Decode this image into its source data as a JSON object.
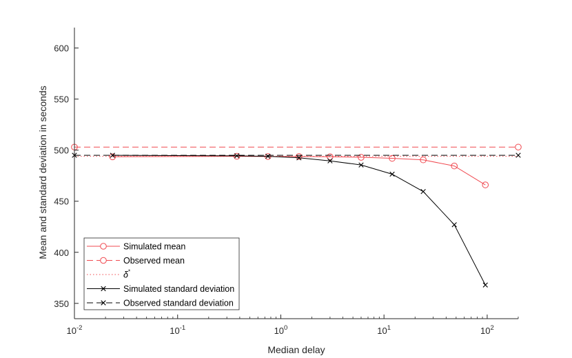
{
  "chart_data": {
    "type": "line",
    "title": "",
    "xlabel": "Median delay",
    "ylabel": "Mean and standard deviation in seconds",
    "xscale": "log",
    "xlim": [
      0.01,
      200
    ],
    "ylim": [
      335,
      620
    ],
    "grid": false,
    "legend_position": "bottom-left",
    "x_ticks": [
      {
        "value": 0.01,
        "base": "10",
        "exp": "-2"
      },
      {
        "value": 0.1,
        "base": "10",
        "exp": "-1"
      },
      {
        "value": 1,
        "base": "10",
        "exp": "0"
      },
      {
        "value": 10,
        "base": "10",
        "exp": "1"
      },
      {
        "value": 100,
        "base": "10",
        "exp": "2"
      }
    ],
    "y_ticks": [
      350,
      400,
      450,
      500,
      550,
      600
    ],
    "series": [
      {
        "name": "Simulated mean",
        "color": "#f0484f",
        "line_style": "solid",
        "marker": "circle",
        "x": [
          0.0234,
          0.375,
          0.75,
          1.5,
          3,
          6,
          12,
          24,
          48,
          96
        ],
        "y": [
          493.5,
          494,
          493.8,
          493.8,
          493.5,
          493,
          492,
          490.5,
          484.5,
          466
        ]
      },
      {
        "name": "Observed mean",
        "color": "#f0484f",
        "line_style": "dashed",
        "marker": "circle",
        "x": [
          0.01,
          200
        ],
        "y": [
          503,
          503
        ]
      },
      {
        "name": "δ*",
        "color": "#f0484f",
        "line_style": "dotted",
        "marker": "none",
        "x": [
          0.01,
          200
        ],
        "y": [
          494,
          494
        ]
      },
      {
        "name": "Simulated standard deviation",
        "color": "#000000",
        "line_style": "solid",
        "marker": "x",
        "x": [
          0.0234,
          0.375,
          0.75,
          1.5,
          3,
          6,
          12,
          24,
          48,
          96
        ],
        "y": [
          495,
          494.5,
          494,
          492.5,
          489.5,
          485.5,
          476.5,
          459.5,
          427,
          368
        ]
      },
      {
        "name": "Observed standard deviation",
        "color": "#000000",
        "line_style": "dashed",
        "marker": "x",
        "x": [
          0.01,
          200
        ],
        "y": [
          495,
          495
        ]
      }
    ]
  }
}
